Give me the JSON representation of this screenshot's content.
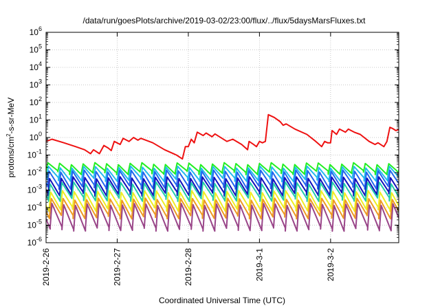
{
  "chart_data": {
    "type": "line",
    "title": "/data/run/goesPlots/archive/2019-03-02/23:00/flux/../flux/5daysMarsFluxes.txt",
    "xlabel": "Coordinated Universal Time (UTC)",
    "ylabel_main": "protons/cm",
    "ylabel_sup": "2",
    "ylabel_rest": "-s-sr-MeV",
    "x_range": [
      "2019-02-26T00:00",
      "2019-03-02T23:00"
    ],
    "x_ticks": [
      "2019-2-26",
      "2019-2-27",
      "2019-2-28",
      "2019-3-1",
      "2019-3-2"
    ],
    "y_scale": "log",
    "y_range": [
      1e-06,
      1000000.0
    ],
    "y_tick_base": "10",
    "y_tick_exponents": [
      "-6",
      "-5",
      "-4",
      "-3",
      "-2",
      "-1",
      "0",
      "1",
      "2",
      "3",
      "4",
      "5",
      "6"
    ],
    "grid": true,
    "series": [
      {
        "color": "#ee1111",
        "points": [
          [
            "2019-02-26T00:00",
            0.6
          ],
          [
            "2019-02-26T02:00",
            0.8
          ],
          [
            "2019-02-26T06:00",
            0.5
          ],
          [
            "2019-02-26T10:00",
            0.3
          ],
          [
            "2019-02-26T13:00",
            0.2
          ],
          [
            "2019-02-26T15:00",
            0.12
          ],
          [
            "2019-02-26T16:00",
            0.2
          ],
          [
            "2019-02-26T18:00",
            0.12
          ],
          [
            "2019-02-26T19:30",
            0.35
          ],
          [
            "2019-02-26T21:00",
            0.25
          ],
          [
            "2019-02-26T22:00",
            0.18
          ],
          [
            "2019-02-26T23:00",
            0.6
          ],
          [
            "2019-02-27T01:00",
            0.4
          ],
          [
            "2019-02-27T02:00",
            0.9
          ],
          [
            "2019-02-27T04:00",
            0.6
          ],
          [
            "2019-02-27T05:30",
            1.0
          ],
          [
            "2019-02-27T07:00",
            0.7
          ],
          [
            "2019-02-27T08:00",
            0.9
          ],
          [
            "2019-02-27T12:00",
            0.5
          ],
          [
            "2019-02-27T16:00",
            0.2
          ],
          [
            "2019-02-27T20:00",
            0.1
          ],
          [
            "2019-02-27T22:00",
            0.06
          ],
          [
            "2019-02-27T23:00",
            0.3
          ],
          [
            "2019-02-28T00:00",
            0.3
          ],
          [
            "2019-02-28T01:00",
            0.8
          ],
          [
            "2019-02-28T02:00",
            0.5
          ],
          [
            "2019-02-28T03:00",
            2.0
          ],
          [
            "2019-02-28T05:00",
            1.3
          ],
          [
            "2019-02-28T06:00",
            1.8
          ],
          [
            "2019-02-28T08:00",
            1.1
          ],
          [
            "2019-02-28T09:00",
            1.6
          ],
          [
            "2019-02-28T13:00",
            0.6
          ],
          [
            "2019-02-28T15:00",
            0.8
          ],
          [
            "2019-02-28T18:00",
            0.4
          ],
          [
            "2019-02-28T20:00",
            0.2
          ],
          [
            "2019-02-28T20:30",
            0.6
          ],
          [
            "2019-02-28T22:00",
            0.4
          ],
          [
            "2019-02-28T23:00",
            0.3
          ],
          [
            "2019-03-01T00:00",
            0.6
          ],
          [
            "2019-03-01T01:00",
            0.5
          ],
          [
            "2019-03-01T02:00",
            0.6
          ],
          [
            "2019-03-01T03:00",
            20
          ],
          [
            "2019-03-01T05:00",
            14
          ],
          [
            "2019-03-01T07:00",
            8
          ],
          [
            "2019-03-01T08:00",
            5
          ],
          [
            "2019-03-01T09:00",
            6
          ],
          [
            "2019-03-01T12:00",
            3
          ],
          [
            "2019-03-01T16:00",
            1.5
          ],
          [
            "2019-03-01T19:00",
            0.6
          ],
          [
            "2019-03-01T21:00",
            0.3
          ],
          [
            "2019-03-01T22:00",
            0.6
          ],
          [
            "2019-03-01T23:00",
            0.5
          ],
          [
            "2019-03-02T00:00",
            0.5
          ],
          [
            "2019-03-02T00:30",
            2.5
          ],
          [
            "2019-03-02T02:00",
            1.5
          ],
          [
            "2019-03-02T03:00",
            3.0
          ],
          [
            "2019-03-02T05:00",
            2.0
          ],
          [
            "2019-03-02T06:00",
            3.0
          ],
          [
            "2019-03-02T08:00",
            2.0
          ],
          [
            "2019-03-02T10:00",
            1.5
          ],
          [
            "2019-03-02T13:00",
            0.6
          ],
          [
            "2019-03-02T15:00",
            0.4
          ],
          [
            "2019-03-02T16:00",
            0.5
          ],
          [
            "2019-03-02T18:00",
            0.3
          ],
          [
            "2019-03-02T19:00",
            0.6
          ],
          [
            "2019-03-02T20:00",
            3.8
          ],
          [
            "2019-03-02T21:00",
            3.2
          ],
          [
            "2019-03-02T22:00",
            2.5
          ],
          [
            "2019-03-02T23:00",
            2.8
          ]
        ]
      },
      {
        "color": "#22ee22",
        "pattern": {
          "min": 0.01,
          "max": 0.032,
          "cycles": 30,
          "phase": 0.0
        }
      },
      {
        "color": "#22bbee",
        "pattern": {
          "min": 0.004,
          "max": 0.02,
          "cycles": 30,
          "phase": 0.05
        }
      },
      {
        "color": "#2266ee",
        "pattern": {
          "min": 0.0015,
          "max": 0.012,
          "cycles": 30,
          "phase": 0.1
        }
      },
      {
        "color": "#1111bb",
        "pattern": {
          "min": 0.0006,
          "max": 0.005,
          "cycles": 30,
          "phase": 0.15
        }
      },
      {
        "color": "#22ccaa",
        "pattern": {
          "min": 0.0003,
          "max": 0.0025,
          "cycles": 30,
          "phase": 0.2
        }
      },
      {
        "color": "#eeee22",
        "pattern": {
          "min": 8e-05,
          "max": 0.0008,
          "cycles": 30,
          "phase": 0.25
        }
      },
      {
        "color": "#ee9922",
        "pattern": {
          "min": 3e-05,
          "max": 0.0003,
          "cycles": 30,
          "phase": 0.3
        }
      },
      {
        "color": "#994488",
        "pattern": {
          "min": 6e-06,
          "max": 0.00015,
          "cycles": 30,
          "phase": 0.35
        }
      }
    ]
  }
}
